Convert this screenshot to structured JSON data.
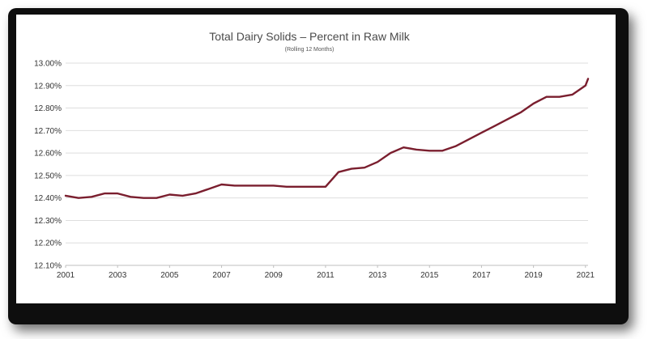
{
  "chart_data": {
    "type": "line",
    "title": "Total Dairy Solids – Percent in Raw Milk",
    "subtitle": "(Rolling 12 Months)",
    "xlabel": "",
    "ylabel": "",
    "xlim": [
      2001,
      2021.1
    ],
    "ylim": [
      12.1,
      13.0
    ],
    "y_ticks": [
      "12.10%",
      "12.20%",
      "12.30%",
      "12.40%",
      "12.50%",
      "12.60%",
      "12.70%",
      "12.80%",
      "12.90%",
      "13.00%"
    ],
    "x_ticks": [
      "2001",
      "2003",
      "2005",
      "2007",
      "2009",
      "2011",
      "2013",
      "2015",
      "2017",
      "2019",
      "2021"
    ],
    "grid": true,
    "legend": "none",
    "line_color": "#7a1e2e",
    "series": [
      {
        "x": [
          2001.0,
          2001.5,
          2002.0,
          2002.5,
          2003.0,
          2003.5,
          2004.0,
          2004.5,
          2005.0,
          2005.5,
          2006.0,
          2006.5,
          2007.0,
          2007.5,
          2008.0,
          2008.5,
          2009.0,
          2009.5,
          2010.0,
          2010.5,
          2011.0,
          2011.5,
          2012.0,
          2012.5,
          2013.0,
          2013.5,
          2014.0,
          2014.5,
          2015.0,
          2015.5,
          2016.0,
          2016.5,
          2017.0,
          2017.5,
          2018.0,
          2018.5,
          2019.0,
          2019.5,
          2020.0,
          2020.5,
          2021.0,
          2021.1
        ],
        "values": [
          12.41,
          12.4,
          12.405,
          12.42,
          12.42,
          12.405,
          12.4,
          12.4,
          12.415,
          12.41,
          12.42,
          12.44,
          12.46,
          12.455,
          12.455,
          12.455,
          12.455,
          12.45,
          12.45,
          12.45,
          12.45,
          12.515,
          12.53,
          12.535,
          12.56,
          12.6,
          12.625,
          12.615,
          12.61,
          12.61,
          12.63,
          12.66,
          12.69,
          12.72,
          12.75,
          12.78,
          12.82,
          12.85,
          12.85,
          12.86,
          12.9,
          12.93
        ]
      }
    ]
  }
}
